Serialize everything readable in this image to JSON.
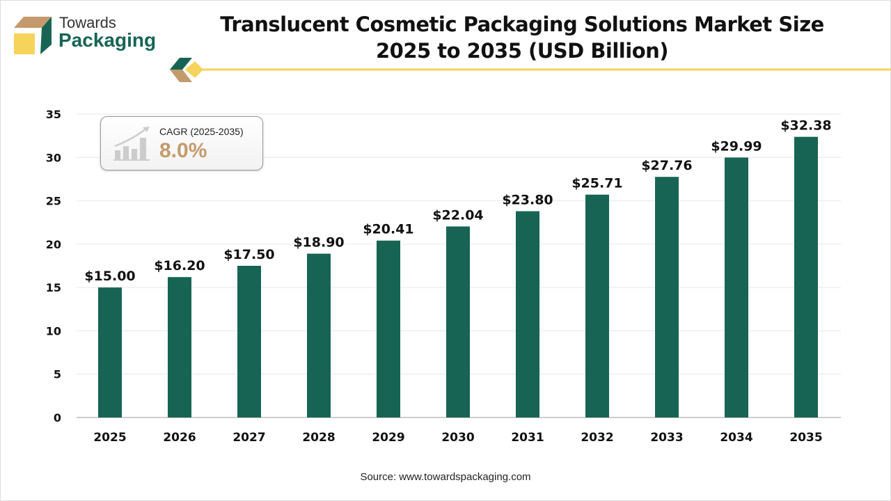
{
  "logo": {
    "line1": "Towards",
    "line2": "Packaging"
  },
  "title_line1": "Translucent Cosmetic Packaging Solutions Market Size",
  "title_line2": "2025 to 2035 (USD Billion)",
  "cagr": {
    "label": "CAGR (2025-2035)",
    "value": "8.0%",
    "icon": "growth-chart-icon"
  },
  "source": "Source: www.towardspackaging.com",
  "colors": {
    "bar": "#176455",
    "accent_yellow": "#f6d35a",
    "accent_tan": "#c49a6c"
  },
  "chart_data": {
    "type": "bar",
    "categories": [
      "2025",
      "2026",
      "2027",
      "2028",
      "2029",
      "2030",
      "2031",
      "2032",
      "2033",
      "2034",
      "2035"
    ],
    "values": [
      15.0,
      16.2,
      17.5,
      18.9,
      20.41,
      22.04,
      23.8,
      25.71,
      27.76,
      29.99,
      32.38
    ],
    "data_labels": [
      "$15.00",
      "$16.20",
      "$17.50",
      "$18.90",
      "$20.41",
      "$22.04",
      "$23.80",
      "$25.71",
      "$27.76",
      "$29.99",
      "$32.38"
    ],
    "ylim": [
      0,
      35
    ],
    "yticks": [
      0,
      5,
      10,
      15,
      20,
      25,
      30,
      35
    ],
    "grid": true,
    "title": "Translucent Cosmetic Packaging Solutions Market Size 2025 to 2035 (USD Billion)"
  }
}
